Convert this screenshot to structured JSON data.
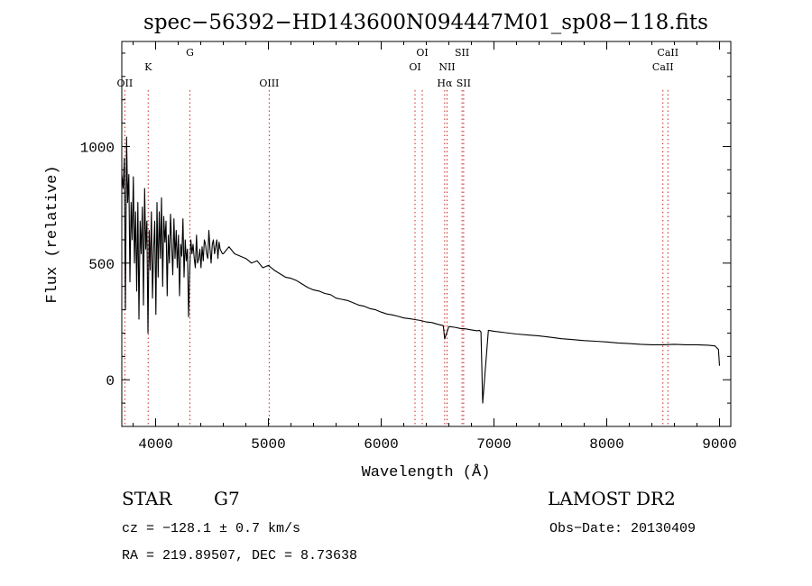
{
  "chart_data": {
    "type": "line",
    "title": "spec−56392−HD143600N094447M01_sp08−118.fits",
    "xlabel": "Wavelength (Å)",
    "ylabel": "Flux (relative)",
    "xlim": [
      3700,
      9100
    ],
    "ylim": [
      -200,
      1450
    ],
    "x_ticks": [
      4000,
      5000,
      6000,
      7000,
      8000,
      9000
    ],
    "y_ticks": [
      0,
      500,
      1000
    ],
    "grid": false,
    "series": [
      {
        "color": "#000000",
        "x": [
          3700,
          3712,
          3722,
          3732,
          3742,
          3752,
          3762,
          3772,
          3782,
          3792,
          3802,
          3812,
          3822,
          3832,
          3842,
          3852,
          3862,
          3872,
          3882,
          3892,
          3902,
          3912,
          3922,
          3932,
          3942,
          3952,
          3962,
          3972,
          3982,
          3992,
          4002,
          4012,
          4022,
          4032,
          4042,
          4052,
          4062,
          4072,
          4082,
          4092,
          4102,
          4112,
          4122,
          4132,
          4142,
          4152,
          4162,
          4172,
          4182,
          4192,
          4202,
          4212,
          4222,
          4232,
          4242,
          4252,
          4262,
          4272,
          4282,
          4292,
          4302,
          4312,
          4322,
          4332,
          4342,
          4352,
          4362,
          4372,
          4382,
          4392,
          4402,
          4412,
          4422,
          4432,
          4442,
          4452,
          4462,
          4472,
          4482,
          4492,
          4502,
          4512,
          4522,
          4532,
          4542,
          4552,
          4562,
          4572,
          4582,
          4592,
          4600,
          4650,
          4700,
          4750,
          4800,
          4850,
          4900,
          4950,
          5000,
          5050,
          5100,
          5150,
          5200,
          5250,
          5300,
          5350,
          5400,
          5450,
          5500,
          5550,
          5600,
          5650,
          5700,
          5750,
          5800,
          5850,
          5900,
          5950,
          6000,
          6050,
          6100,
          6150,
          6200,
          6250,
          6300,
          6350,
          6400,
          6450,
          6500,
          6550,
          6563,
          6600,
          6650,
          6700,
          6750,
          6800,
          6850,
          6870,
          6885,
          6900,
          6950,
          7000,
          7100,
          7200,
          7300,
          7400,
          7500,
          7600,
          7700,
          7800,
          7900,
          8000,
          8100,
          8200,
          8300,
          8400,
          8500,
          8600,
          8700,
          8800,
          8900,
          8960,
          8990,
          9000
        ],
        "values": [
          880,
          820,
          950,
          300,
          1040,
          760,
          880,
          420,
          760,
          600,
          870,
          500,
          720,
          380,
          760,
          260,
          680,
          540,
          740,
          320,
          820,
          560,
          680,
          200,
          640,
          470,
          720,
          350,
          560,
          680,
          280,
          760,
          440,
          720,
          520,
          780,
          400,
          700,
          590,
          680,
          360,
          620,
          500,
          710,
          580,
          450,
          690,
          520,
          640,
          480,
          620,
          360,
          580,
          530,
          690,
          440,
          600,
          510,
          560,
          270,
          470,
          600,
          540,
          580,
          520,
          480,
          620,
          500,
          520,
          560,
          480,
          570,
          510,
          600,
          580,
          540,
          520,
          640,
          560,
          500,
          580,
          600,
          540,
          570,
          600,
          520,
          590,
          560,
          550,
          540,
          540,
          570,
          540,
          530,
          520,
          500,
          510,
          480,
          490,
          470,
          455,
          440,
          435,
          425,
          410,
          395,
          385,
          380,
          370,
          365,
          350,
          345,
          340,
          330,
          320,
          315,
          305,
          300,
          290,
          282,
          278,
          272,
          265,
          262,
          258,
          254,
          248,
          245,
          238,
          232,
          175,
          228,
          225,
          220,
          218,
          214,
          210,
          212,
          205,
          -100,
          212,
          208,
          202,
          196,
          192,
          188,
          182,
          176,
          172,
          168,
          165,
          162,
          158,
          155,
          152,
          150,
          150,
          152,
          150,
          150,
          148,
          145,
          130,
          60
        ]
      }
    ],
    "annotations": {
      "lines": [
        {
          "label": "OII",
          "x": 3727
        },
        {
          "label": "K",
          "x": 3934
        },
        {
          "label": "G",
          "x": 4304
        },
        {
          "label": "OIII",
          "x": 5007
        },
        {
          "label": "OI",
          "x": 6300
        },
        {
          "label": "OI",
          "x": 6364
        },
        {
          "label": "NII",
          "x": 6584
        },
        {
          "label": "Hα",
          "x": 6563
        },
        {
          "label": "SII",
          "x": 6717
        },
        {
          "label": "SII",
          "x": 6731
        },
        {
          "label": "CaII",
          "x": 8498
        },
        {
          "label": "CaII",
          "x": 8542
        }
      ]
    }
  },
  "info": {
    "object_type": "STAR",
    "subclass": "G7",
    "survey": "LAMOST DR2",
    "cz": "cz = −128.1 ± 0.7 km/s",
    "obs_date": "Obs−Date: 20130409",
    "coords": "RA = 219.89507, DEC =   8.73638"
  },
  "colors": {
    "spectrum": "#000000",
    "marker": "#d02020",
    "axis": "#000000"
  }
}
